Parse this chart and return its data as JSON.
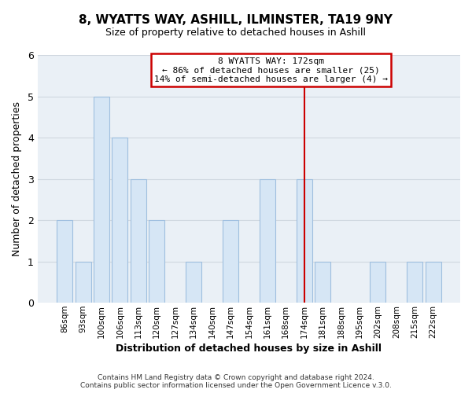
{
  "title": "8, WYATTS WAY, ASHILL, ILMINSTER, TA19 9NY",
  "subtitle": "Size of property relative to detached houses in Ashill",
  "xlabel": "Distribution of detached houses by size in Ashill",
  "ylabel": "Number of detached properties",
  "bar_color": "#d6e6f5",
  "bar_edge_color": "#9fbfdf",
  "categories": [
    "86sqm",
    "93sqm",
    "100sqm",
    "106sqm",
    "113sqm",
    "120sqm",
    "127sqm",
    "134sqm",
    "140sqm",
    "147sqm",
    "154sqm",
    "161sqm",
    "168sqm",
    "174sqm",
    "181sqm",
    "188sqm",
    "195sqm",
    "202sqm",
    "208sqm",
    "215sqm",
    "222sqm"
  ],
  "values": [
    2,
    1,
    5,
    4,
    3,
    2,
    0,
    1,
    0,
    2,
    0,
    3,
    0,
    3,
    1,
    0,
    0,
    1,
    0,
    1,
    1
  ],
  "vline_x": 13,
  "vline_color": "#cc0000",
  "annotation_title": "8 WYATTS WAY: 172sqm",
  "annotation_line1": "← 86% of detached houses are smaller (25)",
  "annotation_line2": "14% of semi-detached houses are larger (4) →",
  "annotation_box_color": "#ffffff",
  "annotation_box_edge_color": "#cc0000",
  "ylim": [
    0,
    6
  ],
  "yticks": [
    0,
    1,
    2,
    3,
    4,
    5,
    6
  ],
  "footer1": "Contains HM Land Registry data © Crown copyright and database right 2024.",
  "footer2": "Contains public sector information licensed under the Open Government Licence v.3.0.",
  "background_color": "#ffffff",
  "grid_color": "#d0d8e0",
  "plot_bg_color": "#eaf0f6"
}
